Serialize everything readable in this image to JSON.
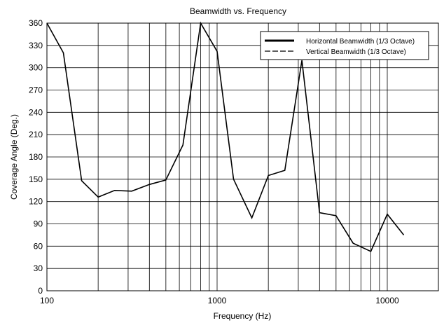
{
  "chart_data": {
    "type": "line",
    "title": "Beamwidth vs. Frequency",
    "xlabel": "Frequency (Hz)",
    "ylabel": "Coverage Angle (Deg.)",
    "xscale": "log",
    "xlim": [
      100,
      20000
    ],
    "ylim": [
      0,
      360
    ],
    "xticks": [
      100,
      1000,
      10000
    ],
    "xtick_labels": [
      "100",
      "1000",
      "10000"
    ],
    "yticks": [
      0,
      30,
      60,
      90,
      120,
      150,
      180,
      210,
      240,
      270,
      300,
      330,
      360
    ],
    "ytick_labels": [
      "0",
      "30",
      "60",
      "90",
      "120",
      "150",
      "180",
      "210",
      "240",
      "270",
      "300",
      "330",
      "360"
    ],
    "grid": true,
    "legend_position": "top-right",
    "series": [
      {
        "name": "Horizontal Beamwidth (1/3 Octave)",
        "style": "solid",
        "x": [
          100,
          125,
          160,
          200,
          250,
          315,
          400,
          500,
          630,
          800,
          1000,
          1250,
          1600,
          2000,
          2500,
          3150,
          4000,
          5000,
          6300,
          8000,
          10000,
          12500
        ],
        "y": [
          360,
          320,
          148,
          126,
          135,
          134,
          143,
          149,
          196,
          360,
          322,
          150,
          98,
          155,
          162,
          310,
          105,
          101,
          64,
          53,
          103,
          75
        ]
      },
      {
        "name": "Vertical Beamwidth (1/3 Octave)",
        "style": "dashed",
        "x": [],
        "y": []
      }
    ]
  }
}
